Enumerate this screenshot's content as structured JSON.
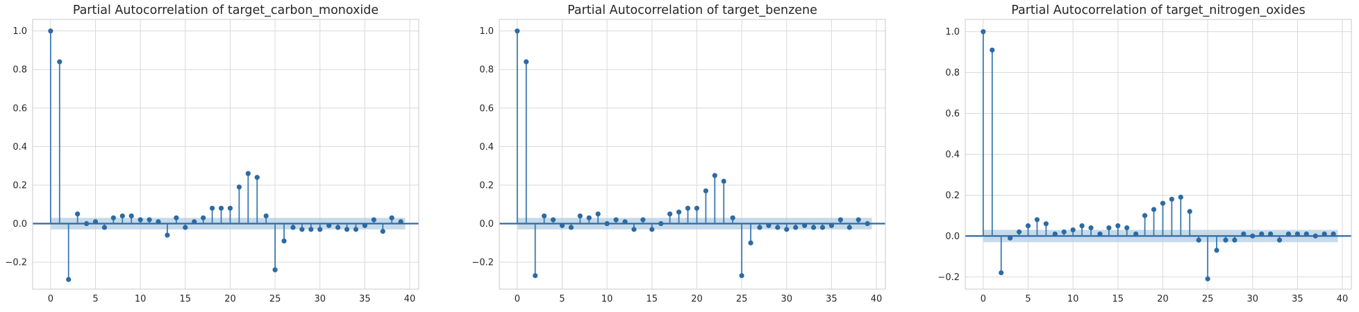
{
  "colors": {
    "stem": "#3a78b0",
    "marker": "#2c6aa3",
    "band": "#b3cde3",
    "baseline": "#2c6aa3",
    "grid": "#d9d9d9"
  },
  "chart_data": [
    {
      "type": "stem",
      "title": "Partial Autocorrelation of target_carbon_monoxide",
      "xlabel": "",
      "ylabel": "",
      "xlim": [
        -2,
        41
      ],
      "ylim": [
        -0.34,
        1.06
      ],
      "xticks": [
        0,
        5,
        10,
        15,
        20,
        25,
        30,
        35,
        40
      ],
      "yticks": [
        -0.2,
        0.0,
        0.2,
        0.4,
        0.6,
        0.8,
        1.0
      ],
      "ytick_labels": [
        "−0.2",
        "0.0",
        "0.2",
        "0.4",
        "0.6",
        "0.8",
        "1.0"
      ],
      "grid": true,
      "confidence_band": [
        -0.03,
        0.03
      ],
      "lags": [
        0,
        1,
        2,
        3,
        4,
        5,
        6,
        7,
        8,
        9,
        10,
        11,
        12,
        13,
        14,
        15,
        16,
        17,
        18,
        19,
        20,
        21,
        22,
        23,
        24,
        25,
        26,
        27,
        28,
        29,
        30,
        31,
        32,
        33,
        34,
        35,
        36,
        37,
        38,
        39
      ],
      "values": [
        1.0,
        0.84,
        -0.29,
        0.05,
        0.0,
        0.01,
        -0.02,
        0.03,
        0.04,
        0.04,
        0.02,
        0.02,
        0.01,
        -0.06,
        0.03,
        -0.02,
        0.01,
        0.03,
        0.08,
        0.08,
        0.08,
        0.19,
        0.26,
        0.24,
        0.04,
        -0.24,
        -0.09,
        -0.02,
        -0.03,
        -0.03,
        -0.03,
        -0.01,
        -0.02,
        -0.03,
        -0.03,
        -0.01,
        0.02,
        -0.04,
        0.03,
        0.01
      ]
    },
    {
      "type": "stem",
      "title": "Partial Autocorrelation of target_benzene",
      "xlabel": "",
      "ylabel": "",
      "xlim": [
        -2,
        41
      ],
      "ylim": [
        -0.34,
        1.06
      ],
      "xticks": [
        0,
        5,
        10,
        15,
        20,
        25,
        30,
        35,
        40
      ],
      "yticks": [
        -0.2,
        0.0,
        0.2,
        0.4,
        0.6,
        0.8,
        1.0
      ],
      "ytick_labels": [
        "−0.2",
        "0.0",
        "0.2",
        "0.4",
        "0.6",
        "0.8",
        "1.0"
      ],
      "grid": true,
      "confidence_band": [
        -0.03,
        0.03
      ],
      "lags": [
        0,
        1,
        2,
        3,
        4,
        5,
        6,
        7,
        8,
        9,
        10,
        11,
        12,
        13,
        14,
        15,
        16,
        17,
        18,
        19,
        20,
        21,
        22,
        23,
        24,
        25,
        26,
        27,
        28,
        29,
        30,
        31,
        32,
        33,
        34,
        35,
        36,
        37,
        38,
        39
      ],
      "values": [
        1.0,
        0.84,
        -0.27,
        0.04,
        0.02,
        -0.01,
        -0.02,
        0.04,
        0.03,
        0.05,
        0.0,
        0.02,
        0.01,
        -0.03,
        0.02,
        -0.03,
        0.0,
        0.05,
        0.06,
        0.08,
        0.08,
        0.17,
        0.25,
        0.22,
        0.03,
        -0.27,
        -0.1,
        -0.02,
        -0.01,
        -0.02,
        -0.03,
        -0.02,
        -0.01,
        -0.02,
        -0.02,
        -0.01,
        0.02,
        -0.02,
        0.02,
        0.0
      ]
    },
    {
      "type": "stem",
      "title": "Partial Autocorrelation of target_nitrogen_oxides",
      "xlabel": "",
      "ylabel": "",
      "xlim": [
        -2,
        41
      ],
      "ylim": [
        -0.26,
        1.06
      ],
      "xticks": [
        0,
        5,
        10,
        15,
        20,
        25,
        30,
        35,
        40
      ],
      "yticks": [
        -0.2,
        0.0,
        0.2,
        0.4,
        0.6,
        0.8,
        1.0
      ],
      "ytick_labels": [
        "−0.2",
        "0.0",
        "0.2",
        "0.4",
        "0.6",
        "0.8",
        "1.0"
      ],
      "grid": true,
      "confidence_band": [
        -0.03,
        0.03
      ],
      "lags": [
        0,
        1,
        2,
        3,
        4,
        5,
        6,
        7,
        8,
        9,
        10,
        11,
        12,
        13,
        14,
        15,
        16,
        17,
        18,
        19,
        20,
        21,
        22,
        23,
        24,
        25,
        26,
        27,
        28,
        29,
        30,
        31,
        32,
        33,
        34,
        35,
        36,
        37,
        38,
        39
      ],
      "values": [
        1.0,
        0.91,
        -0.18,
        -0.01,
        0.02,
        0.05,
        0.08,
        0.06,
        0.01,
        0.02,
        0.03,
        0.05,
        0.04,
        0.01,
        0.04,
        0.05,
        0.04,
        0.01,
        0.1,
        0.13,
        0.16,
        0.18,
        0.19,
        0.12,
        -0.02,
        -0.21,
        -0.07,
        -0.02,
        -0.02,
        0.01,
        0.0,
        0.01,
        0.01,
        -0.02,
        0.01,
        0.01,
        0.01,
        0.0,
        0.01,
        0.01
      ]
    }
  ]
}
